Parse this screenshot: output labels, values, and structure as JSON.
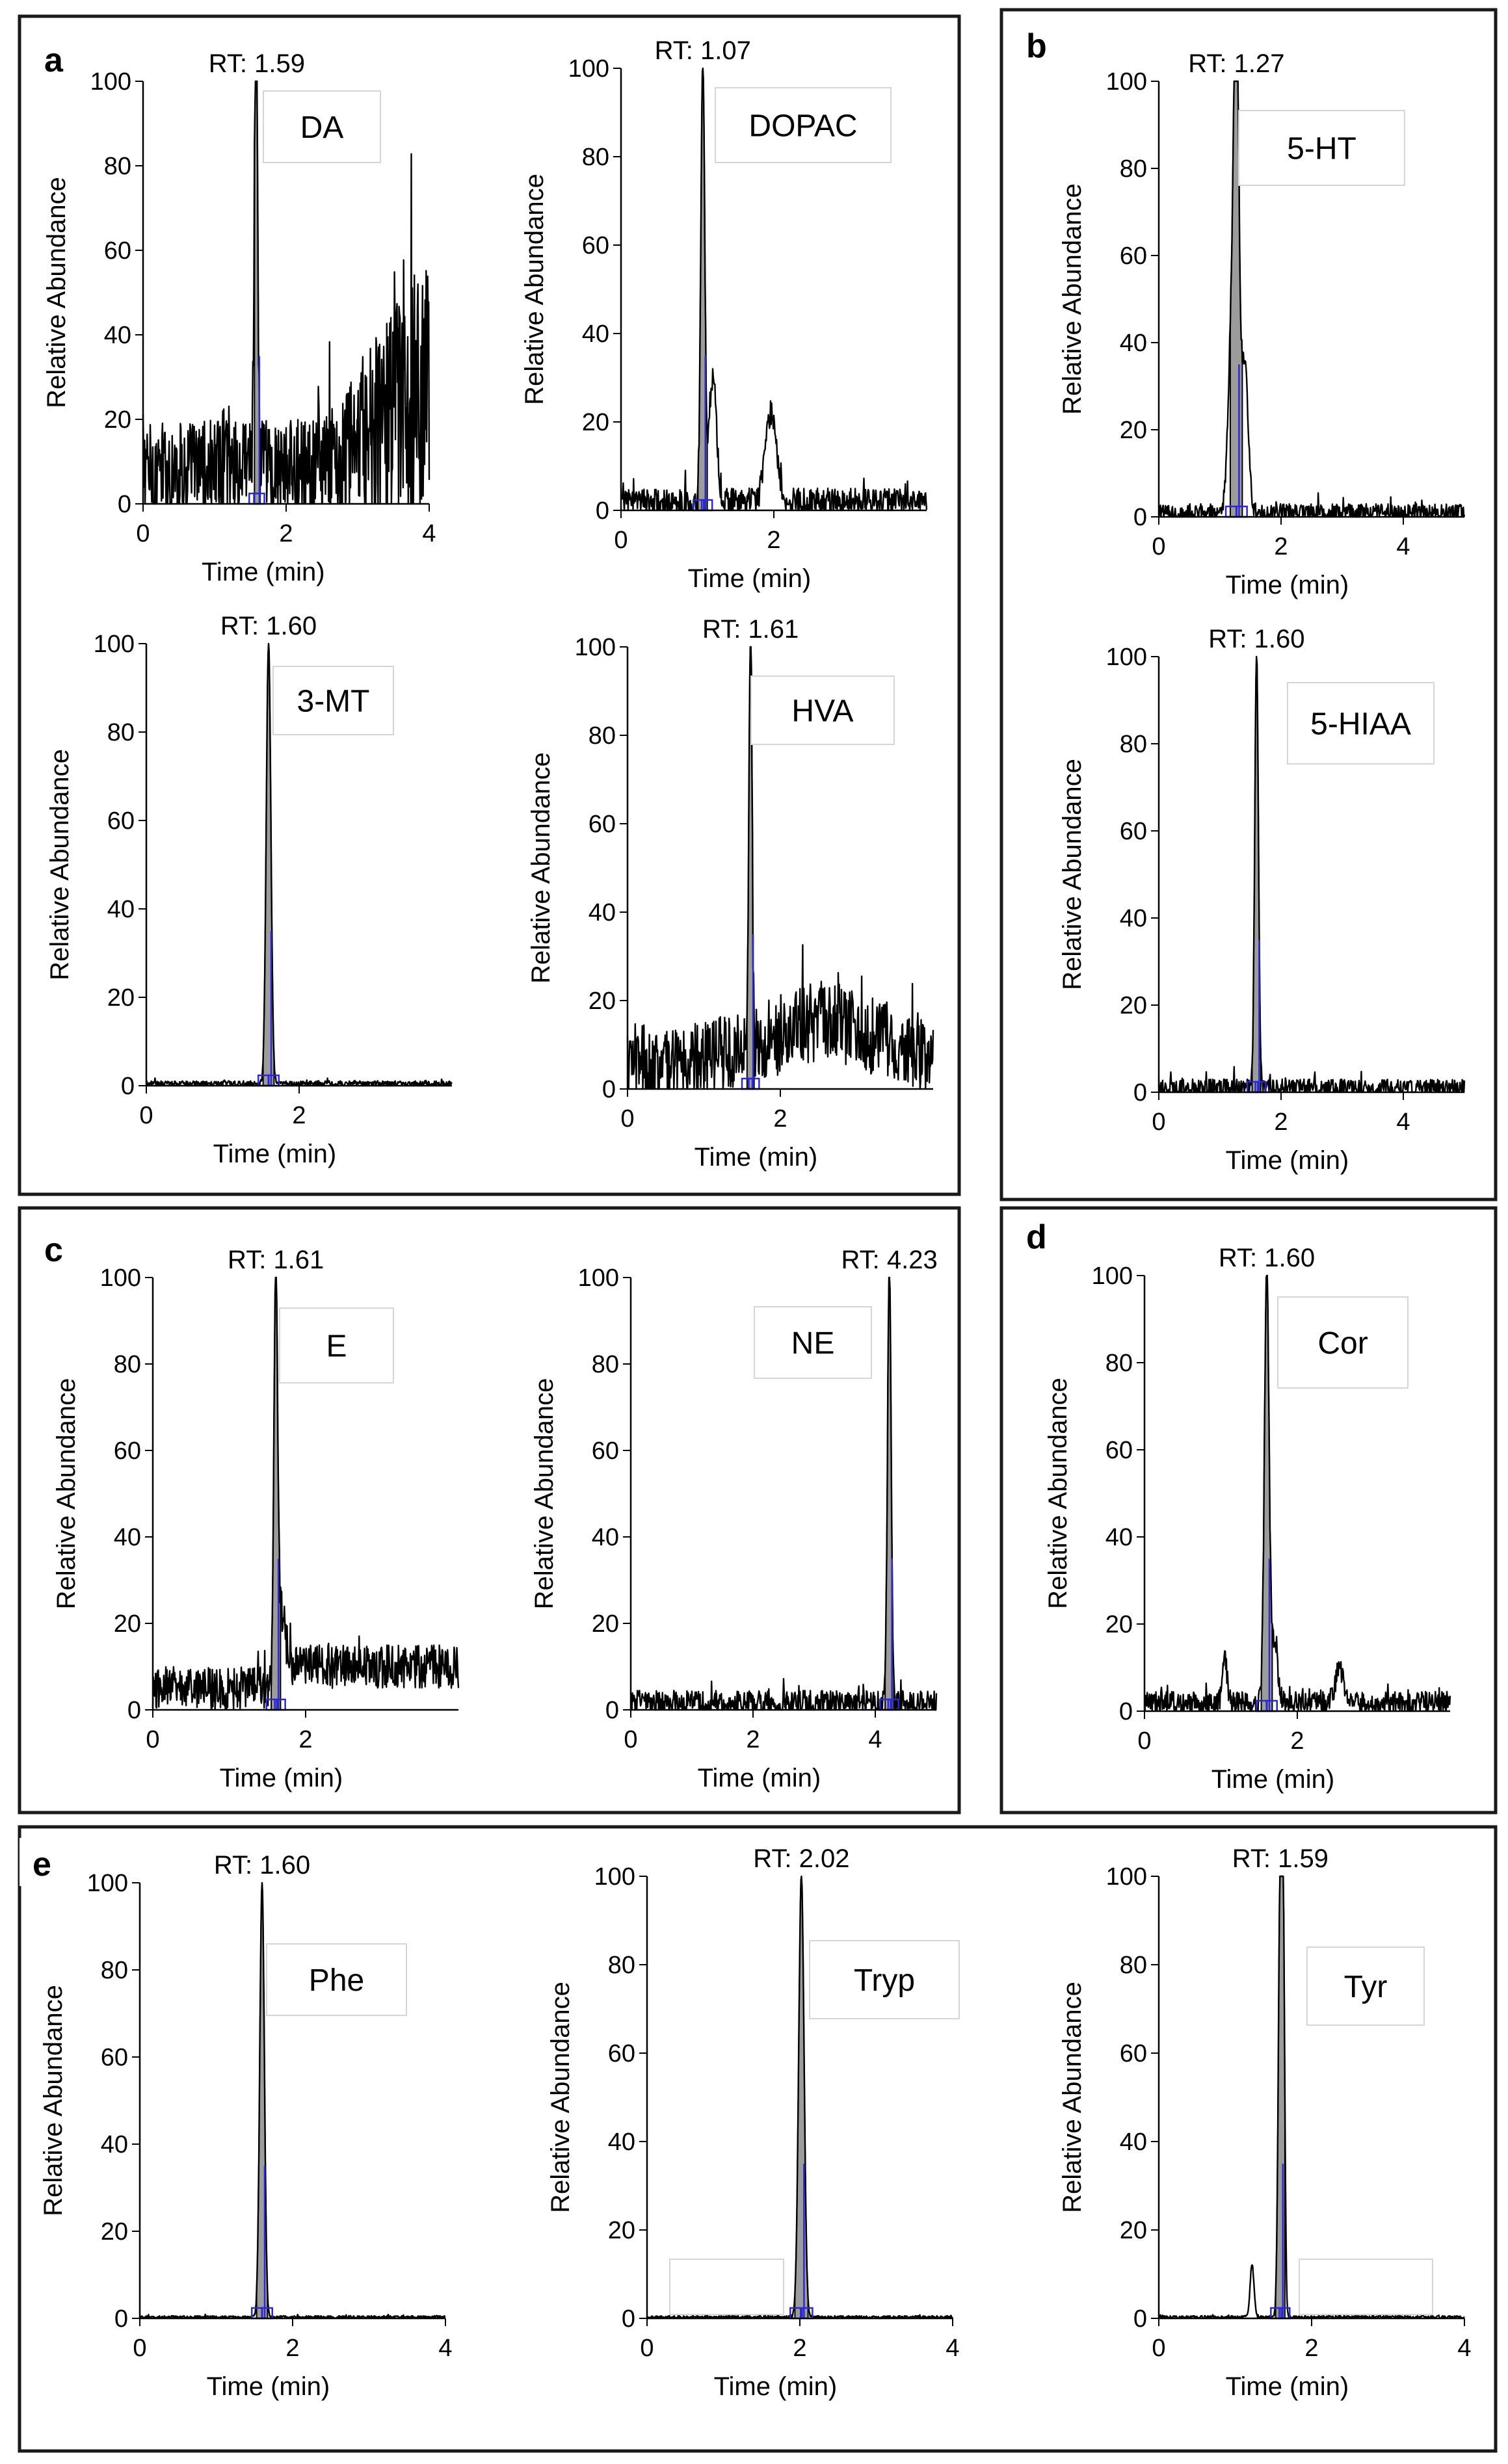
{
  "panel_labels": [
    "a",
    "b",
    "c",
    "d",
    "e"
  ],
  "axis_text": {
    "ylabel": "Relative Abundance",
    "xlabel": "Time (min)"
  },
  "chart_data": [
    {
      "type": "line",
      "panel": "a",
      "compound": "DA",
      "rt_label": "RT: 1.59",
      "rt": 1.59,
      "xlim": [
        0,
        4
      ],
      "xticks": [
        0,
        2,
        4
      ],
      "ylim": [
        0,
        100
      ],
      "yticks": [
        0,
        20,
        40,
        60,
        80,
        100
      ],
      "noise": "rising",
      "baseline": 8,
      "noise_amp": 12,
      "peaks": [
        {
          "t": 1.59,
          "h": 100,
          "w": 0.015
        },
        {
          "t": 1.56,
          "h": 62,
          "w": 0.015
        }
      ]
    },
    {
      "type": "line",
      "panel": "a",
      "compound": "DOPAC",
      "rt_label": "RT: 1.07",
      "rt": 1.07,
      "xlim": [
        0,
        4
      ],
      "xticks": [
        0,
        2
      ],
      "ylim": [
        0,
        100
      ],
      "yticks": [
        0,
        20,
        40,
        60,
        80,
        100
      ],
      "noise": "flat",
      "baseline": 2,
      "noise_amp": 3,
      "peaks": [
        {
          "t": 1.07,
          "h": 100,
          "w": 0.025
        },
        {
          "t": 1.2,
          "h": 28,
          "w": 0.05
        },
        {
          "t": 1.96,
          "h": 20,
          "w": 0.07
        }
      ]
    },
    {
      "type": "line",
      "panel": "a",
      "compound": "3-MT",
      "rt_label": "RT: 1.60",
      "rt": 1.6,
      "xlim": [
        0,
        4
      ],
      "xticks": [
        0,
        2
      ],
      "ylim": [
        0,
        100
      ],
      "yticks": [
        0,
        20,
        40,
        60,
        80,
        100
      ],
      "noise": "flat",
      "baseline": 0.5,
      "noise_amp": 0.6,
      "peaks": [
        {
          "t": 1.6,
          "h": 100,
          "w": 0.03
        }
      ]
    },
    {
      "type": "line",
      "panel": "a",
      "compound": "HVA",
      "rt_label": "RT: 1.61",
      "rt": 1.61,
      "xlim": [
        0,
        4
      ],
      "xticks": [
        0,
        2
      ],
      "ylim": [
        0,
        100
      ],
      "yticks": [
        0,
        20,
        40,
        60,
        80,
        100
      ],
      "noise": "hump",
      "baseline": 6,
      "noise_amp": 9,
      "peaks": [
        {
          "t": 1.61,
          "h": 100,
          "w": 0.02
        }
      ]
    },
    {
      "type": "line",
      "panel": "b",
      "compound": "5-HT",
      "rt_label": "RT: 1.27",
      "rt": 1.27,
      "xlim": [
        0,
        5
      ],
      "xticks": [
        0,
        2,
        4
      ],
      "ylim": [
        0,
        100
      ],
      "yticks": [
        0,
        20,
        40,
        60,
        80,
        100
      ],
      "noise": "flat",
      "baseline": 1,
      "noise_amp": 2,
      "peaks": [
        {
          "t": 1.27,
          "h": 100,
          "w": 0.04
        },
        {
          "t": 1.2,
          "h": 45,
          "w": 0.06
        },
        {
          "t": 1.4,
          "h": 35,
          "w": 0.06
        }
      ]
    },
    {
      "type": "line",
      "panel": "b",
      "compound": "5-HIAA",
      "rt_label": "RT: 1.60",
      "rt": 1.6,
      "xlim": [
        0,
        5
      ],
      "xticks": [
        0,
        2,
        4
      ],
      "ylim": [
        0,
        100
      ],
      "yticks": [
        0,
        20,
        40,
        60,
        80,
        100
      ],
      "noise": "flat",
      "baseline": 1,
      "noise_amp": 2,
      "peaks": [
        {
          "t": 1.6,
          "h": 100,
          "w": 0.03
        }
      ]
    },
    {
      "type": "line",
      "panel": "c",
      "compound": "E",
      "rt_label": "RT: 1.61",
      "rt": 1.61,
      "xlim": [
        0,
        4
      ],
      "xticks": [
        0,
        2
      ],
      "ylim": [
        0,
        100
      ],
      "yticks": [
        0,
        20,
        40,
        60,
        80,
        100
      ],
      "noise": "step",
      "baseline": 5,
      "noise_amp": 5,
      "peaks": [
        {
          "t": 1.61,
          "h": 100,
          "w": 0.025
        },
        {
          "t": 1.7,
          "h": 18,
          "w": 0.04
        }
      ]
    },
    {
      "type": "line",
      "panel": "c",
      "compound": "NE",
      "rt_label": "RT: 4.23",
      "rt": 4.23,
      "xlim": [
        0,
        5
      ],
      "xticks": [
        0,
        2,
        4
      ],
      "ylim": [
        0,
        100
      ],
      "yticks": [
        0,
        20,
        40,
        60,
        80,
        100
      ],
      "noise": "flat",
      "baseline": 1.5,
      "noise_amp": 3,
      "peaks": [
        {
          "t": 4.23,
          "h": 100,
          "w": 0.03
        }
      ]
    },
    {
      "type": "line",
      "panel": "d",
      "compound": "Cor",
      "rt_label": "RT: 1.60",
      "rt": 1.6,
      "xlim": [
        0,
        4
      ],
      "xticks": [
        0,
        2
      ],
      "ylim": [
        0,
        100
      ],
      "yticks": [
        0,
        20,
        40,
        60,
        80,
        100
      ],
      "noise": "flat",
      "baseline": 2,
      "noise_amp": 2.5,
      "peaks": [
        {
          "t": 1.6,
          "h": 100,
          "w": 0.03
        },
        {
          "t": 1.05,
          "h": 10,
          "w": 0.03
        },
        {
          "t": 1.7,
          "h": 14,
          "w": 0.04
        },
        {
          "t": 2.55,
          "h": 8,
          "w": 0.05
        }
      ]
    },
    {
      "type": "line",
      "panel": "e",
      "compound": "Phe",
      "rt_label": "RT: 1.60",
      "rt": 1.6,
      "xlim": [
        0,
        4
      ],
      "xticks": [
        0,
        2,
        4
      ],
      "ylim": [
        0,
        100
      ],
      "yticks": [
        0,
        20,
        40,
        60,
        80,
        100
      ],
      "noise": "flat",
      "baseline": 0.3,
      "noise_amp": 0.3,
      "peaks": [
        {
          "t": 1.6,
          "h": 100,
          "w": 0.03
        }
      ]
    },
    {
      "type": "line",
      "panel": "e",
      "compound": "Tryp",
      "rt_label": "RT: 2.02",
      "rt": 2.02,
      "xlim": [
        0,
        4
      ],
      "xticks": [
        0,
        2,
        4
      ],
      "ylim": [
        0,
        100
      ],
      "yticks": [
        0,
        20,
        40,
        60,
        80,
        100
      ],
      "noise": "flat",
      "baseline": 0.3,
      "noise_amp": 0.3,
      "peaks": [
        {
          "t": 2.02,
          "h": 100,
          "w": 0.035
        }
      ]
    },
    {
      "type": "line",
      "panel": "e",
      "compound": "Tyr",
      "rt_label": "RT: 1.59",
      "rt": 1.59,
      "xlim": [
        0,
        4
      ],
      "xticks": [
        0,
        2,
        4
      ],
      "ylim": [
        0,
        100
      ],
      "yticks": [
        0,
        20,
        40,
        60,
        80,
        100
      ],
      "noise": "flat",
      "baseline": 0.3,
      "noise_amp": 0.3,
      "peaks": [
        {
          "t": 1.59,
          "h": 100,
          "w": 0.025
        },
        {
          "t": 1.63,
          "h": 75,
          "w": 0.02
        },
        {
          "t": 1.22,
          "h": 12,
          "w": 0.025
        }
      ]
    }
  ]
}
